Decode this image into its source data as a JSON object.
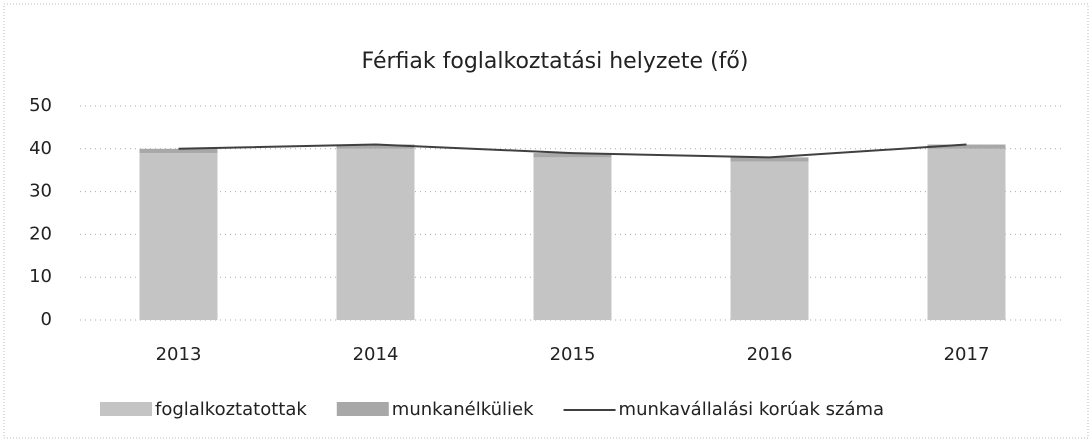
{
  "chart_data": {
    "type": "bar-line",
    "title": "Férfiak foglalkoztatási helyzete (fő)",
    "categories": [
      "2013",
      "2014",
      "2015",
      "2016",
      "2017"
    ],
    "series": [
      {
        "name": "foglalkoztatottak",
        "kind": "bar",
        "color": "#c4c4c4",
        "values": [
          39,
          40,
          38,
          37,
          40
        ]
      },
      {
        "name": "munkanélküliek",
        "kind": "bar",
        "color": "#a8a8a8",
        "values": [
          1,
          1,
          1,
          1,
          1
        ]
      },
      {
        "name": "munkavállalási korúak száma",
        "kind": "line",
        "color": "#404040",
        "values": [
          40,
          41,
          39,
          38,
          41
        ]
      }
    ],
    "stacked": true,
    "ylim": [
      0,
      50
    ],
    "yticks": [
      0,
      10,
      20,
      30,
      40,
      50
    ],
    "grid": true,
    "legend": "bottom"
  }
}
